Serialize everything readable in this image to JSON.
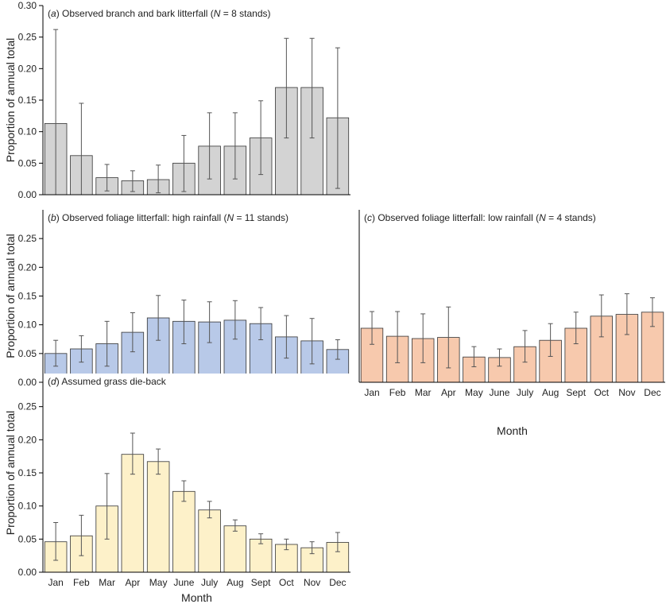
{
  "chart_data": [
    {
      "id": "a",
      "type": "bar",
      "panel_label": "a",
      "title_pre": "Observed branch and bark litterfall (",
      "title_n": "N",
      "title_post": " = 8 stands)",
      "categories": [
        "Jan",
        "Feb",
        "Mar",
        "Apr",
        "May",
        "June",
        "July",
        "Aug",
        "Sept",
        "Oct",
        "Nov",
        "Dec"
      ],
      "values": [
        0.113,
        0.062,
        0.027,
        0.022,
        0.024,
        0.05,
        0.077,
        0.077,
        0.09,
        0.17,
        0.17,
        0.122
      ],
      "error_low": [
        0.0,
        0.0,
        0.006,
        0.005,
        0.003,
        0.005,
        0.025,
        0.025,
        0.032,
        0.09,
        0.09,
        0.01
      ],
      "error_high": [
        0.262,
        0.145,
        0.048,
        0.038,
        0.047,
        0.094,
        0.13,
        0.13,
        0.149,
        0.248,
        0.248,
        0.233
      ],
      "ylabel": "Proportion of annual total",
      "xlabel": "",
      "ylim": [
        0,
        0.3
      ],
      "yticks": [
        "0.00",
        "0.05",
        "0.10",
        "0.15",
        "0.20",
        "0.25",
        "0.30"
      ],
      "bar_color": "#d3d3d3",
      "show_xticklabels": false
    },
    {
      "id": "b",
      "type": "bar",
      "panel_label": "b",
      "title_pre": "Observed foliage litterfall: high rainfall (",
      "title_n": "N",
      "title_post": " = 11 stands)",
      "categories": [
        "Jan",
        "Feb",
        "Mar",
        "Apr",
        "May",
        "June",
        "July",
        "Aug",
        "Sept",
        "Oct",
        "Nov",
        "Dec"
      ],
      "values": [
        0.05,
        0.058,
        0.067,
        0.087,
        0.112,
        0.106,
        0.105,
        0.108,
        0.102,
        0.079,
        0.072,
        0.057
      ],
      "error_low": [
        0.028,
        0.035,
        0.028,
        0.053,
        0.073,
        0.067,
        0.069,
        0.075,
        0.074,
        0.042,
        0.032,
        0.04
      ],
      "error_high": [
        0.073,
        0.081,
        0.106,
        0.121,
        0.151,
        0.143,
        0.14,
        0.142,
        0.13,
        0.116,
        0.111,
        0.074
      ],
      "ylabel": "Proportion of annual total",
      "xlabel": "",
      "ylim": [
        0,
        0.3
      ],
      "yticks": [
        "0.00",
        "0.05",
        "0.10",
        "0.15",
        "0.20",
        "0.25"
      ],
      "bar_color": "#b8c9e8",
      "show_xticklabels": false
    },
    {
      "id": "c",
      "type": "bar",
      "panel_label": "c",
      "title_pre": "Observed foliage litterfall: low rainfall (",
      "title_n": "N",
      "title_post": " = 4 stands)",
      "categories": [
        "Jan",
        "Feb",
        "Mar",
        "Apr",
        "May",
        "June",
        "July",
        "Aug",
        "Sept",
        "Oct",
        "Nov",
        "Dec"
      ],
      "values": [
        0.094,
        0.08,
        0.076,
        0.078,
        0.044,
        0.043,
        0.062,
        0.073,
        0.094,
        0.115,
        0.118,
        0.122
      ],
      "error_low": [
        0.066,
        0.034,
        0.034,
        0.025,
        0.027,
        0.028,
        0.035,
        0.045,
        0.067,
        0.079,
        0.083,
        0.097
      ],
      "error_high": [
        0.123,
        0.123,
        0.119,
        0.131,
        0.062,
        0.058,
        0.09,
        0.102,
        0.122,
        0.152,
        0.154,
        0.147
      ],
      "ylabel": "",
      "xlabel": "Month",
      "ylim": [
        0,
        0.3
      ],
      "yticks": [],
      "bar_color": "#f7c9ad",
      "show_xticklabels": true
    },
    {
      "id": "d",
      "type": "bar",
      "panel_label": "d",
      "title_pre": "Assumed grass die-back",
      "title_n": "",
      "title_post": "",
      "categories": [
        "Jan",
        "Feb",
        "Mar",
        "Apr",
        "May",
        "June",
        "July",
        "Aug",
        "Sept",
        "Oct",
        "Nov",
        "Dec"
      ],
      "values": [
        0.046,
        0.055,
        0.1,
        0.178,
        0.167,
        0.122,
        0.094,
        0.07,
        0.05,
        0.042,
        0.037,
        0.045
      ],
      "error_low": [
        0.018,
        0.025,
        0.05,
        0.148,
        0.148,
        0.107,
        0.082,
        0.062,
        0.043,
        0.034,
        0.028,
        0.031
      ],
      "error_high": [
        0.075,
        0.086,
        0.149,
        0.21,
        0.186,
        0.138,
        0.107,
        0.079,
        0.058,
        0.05,
        0.046,
        0.06
      ],
      "ylabel": "Proportion of annual total",
      "xlabel": "Month",
      "ylim": [
        0,
        0.3
      ],
      "yticks": [
        "0.00",
        "0.05",
        "0.10",
        "0.15",
        "0.20",
        "0.25"
      ],
      "bar_color": "#fdf1c9",
      "show_xticklabels": true
    }
  ]
}
